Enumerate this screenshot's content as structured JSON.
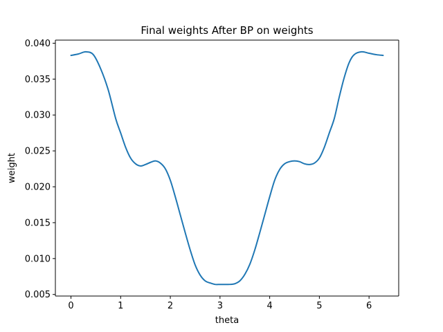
{
  "chart_data": {
    "type": "line",
    "title": "Final weights After BP on weights",
    "xlabel": "theta",
    "ylabel": "weight",
    "xlim": [
      -0.314,
      6.597
    ],
    "ylim": [
      0.00478,
      0.04043
    ],
    "xticks": [
      0,
      1,
      2,
      3,
      4,
      5,
      6
    ],
    "yticks": [
      0.005,
      0.01,
      0.015,
      0.02,
      0.025,
      0.03,
      0.035,
      0.04
    ],
    "ytick_labels": [
      "0.005",
      "0.010",
      "0.015",
      "0.020",
      "0.025",
      "0.030",
      "0.035",
      "0.040"
    ],
    "grid": false,
    "color": "#1f77b4",
    "series": [
      {
        "name": "",
        "x": [
          0.0,
          0.15,
          0.3,
          0.45,
          0.6,
          0.75,
          0.9,
          1.0,
          1.1,
          1.2,
          1.3,
          1.4,
          1.5,
          1.6,
          1.7,
          1.8,
          1.9,
          2.0,
          2.1,
          2.2,
          2.3,
          2.4,
          2.5,
          2.6,
          2.7,
          2.8,
          2.9,
          3.0,
          3.1,
          3.2,
          3.3,
          3.4,
          3.5,
          3.6,
          3.7,
          3.8,
          3.9,
          4.0,
          4.1,
          4.2,
          4.3,
          4.4,
          4.5,
          4.6,
          4.7,
          4.8,
          4.9,
          5.0,
          5.1,
          5.2,
          5.3,
          5.4,
          5.5,
          5.6,
          5.7,
          5.85,
          6.0,
          6.15,
          6.283
        ],
        "y": [
          0.0383,
          0.0385,
          0.0388,
          0.0384,
          0.0364,
          0.0335,
          0.0295,
          0.0275,
          0.0255,
          0.024,
          0.0232,
          0.0229,
          0.0231,
          0.0234,
          0.0236,
          0.0233,
          0.0225,
          0.0209,
          0.0186,
          0.0161,
          0.0136,
          0.0112,
          0.0091,
          0.0077,
          0.0069,
          0.0066,
          0.0064,
          0.0064,
          0.0064,
          0.0064,
          0.0065,
          0.0069,
          0.0078,
          0.0092,
          0.0112,
          0.0136,
          0.0161,
          0.0186,
          0.0209,
          0.0224,
          0.0232,
          0.0235,
          0.0236,
          0.0235,
          0.0232,
          0.0231,
          0.0233,
          0.024,
          0.0255,
          0.0275,
          0.0295,
          0.0325,
          0.0352,
          0.0373,
          0.0384,
          0.0388,
          0.0386,
          0.0384,
          0.0383
        ]
      }
    ]
  }
}
